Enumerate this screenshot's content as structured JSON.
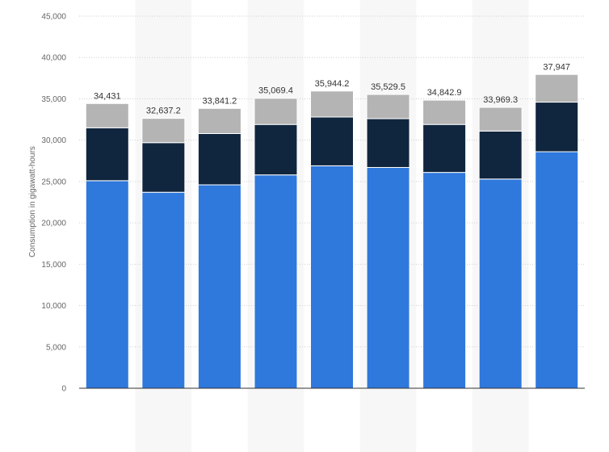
{
  "chart_data": {
    "type": "bar",
    "stacked": true,
    "ylabel": "Consumption in gigawatt-hours",
    "ylim": [
      0,
      45000
    ],
    "yticks": [
      0,
      5000,
      10000,
      15000,
      20000,
      25000,
      30000,
      35000,
      40000,
      45000
    ],
    "ytick_labels": [
      "0",
      "5,000",
      "10,000",
      "15,000",
      "20,000",
      "25,000",
      "30,000",
      "35,000",
      "40,000",
      "45,000"
    ],
    "grid": true,
    "categories": [
      "",
      "",
      "",
      "",
      "",
      "",
      "",
      "",
      ""
    ],
    "series": [
      {
        "values": [
          25100,
          23700,
          24600,
          25800,
          26900,
          26700,
          26100,
          25300,
          28600
        ],
        "color": "#2f78dc"
      },
      {
        "values": [
          6400,
          6000,
          6200,
          6100,
          5900,
          5900,
          5800,
          5800,
          6000
        ],
        "color": "#10263e"
      },
      {
        "values": [
          2931,
          2937.2,
          3041.2,
          3169.4,
          3144.2,
          2929.5,
          2942.9,
          2869.3,
          3347
        ],
        "color": "#b4b4b4"
      }
    ],
    "totals": [
      34431,
      32637.2,
      33841.2,
      35069.4,
      35944.2,
      35529.5,
      34842.9,
      33969.3,
      37947
    ],
    "total_labels": [
      "34,431",
      "32,637.2",
      "33,841.2",
      "35,069.4",
      "35,944.2",
      "35,529.5",
      "34,842.9",
      "33,969.3",
      "37,947"
    ]
  }
}
